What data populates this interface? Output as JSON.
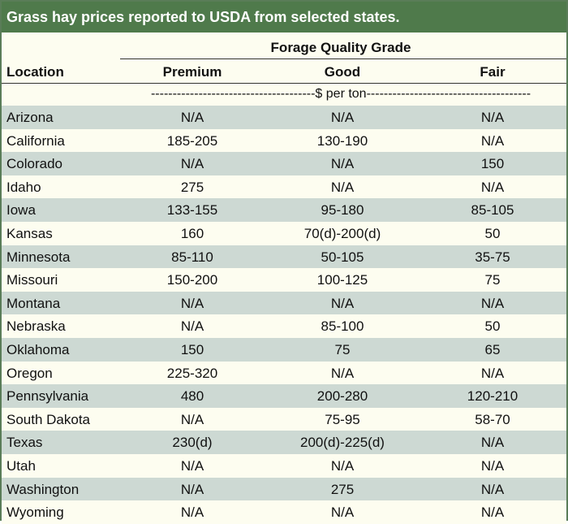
{
  "title": "Grass hay prices reported to USDA from selected states.",
  "group_heading": "Forage Quality Grade",
  "columns": {
    "location": "Location",
    "premium": "Premium",
    "good": "Good",
    "fair": "Fair"
  },
  "units": "--------------------------------------$ per ton--------------------------------------",
  "rows": [
    {
      "location": "Arizona",
      "premium": "N/A",
      "good": "N/A",
      "fair": "N/A"
    },
    {
      "location": "California",
      "premium": "185-205",
      "good": "130-190",
      "fair": "N/A"
    },
    {
      "location": "Colorado",
      "premium": "N/A",
      "good": "N/A",
      "fair": "150"
    },
    {
      "location": "Idaho",
      "premium": "275",
      "good": "N/A",
      "fair": "N/A"
    },
    {
      "location": "Iowa",
      "premium": "133-155",
      "good": "95-180",
      "fair": "85-105"
    },
    {
      "location": "Kansas",
      "premium": "160",
      "good": "70(d)-200(d)",
      "fair": "50"
    },
    {
      "location": "Minnesota",
      "premium": "85-110",
      "good": "50-105",
      "fair": "35-75"
    },
    {
      "location": "Missouri",
      "premium": "150-200",
      "good": "100-125",
      "fair": "75"
    },
    {
      "location": "Montana",
      "premium": "N/A",
      "good": "N/A",
      "fair": "N/A"
    },
    {
      "location": "Nebraska",
      "premium": "N/A",
      "good": "85-100",
      "fair": "50"
    },
    {
      "location": "Oklahoma",
      "premium": "150",
      "good": "75",
      "fair": "65"
    },
    {
      "location": "Oregon",
      "premium": "225-320",
      "good": "N/A",
      "fair": "N/A"
    },
    {
      "location": "Pennsylvania",
      "premium": "480",
      "good": "200-280",
      "fair": "120-210"
    },
    {
      "location": "South Dakota",
      "premium": "N/A",
      "good": "75-95",
      "fair": "58-70"
    },
    {
      "location": "Texas",
      "premium": "230(d)",
      "good": "200(d)-225(d)",
      "fair": "N/A"
    },
    {
      "location": "Utah",
      "premium": "N/A",
      "good": "N/A",
      "fair": "N/A"
    },
    {
      "location": "Washington",
      "premium": "N/A",
      "good": "275",
      "fair": "N/A"
    },
    {
      "location": "Wyoming",
      "premium": "N/A",
      "good": "N/A",
      "fair": "N/A"
    }
  ],
  "colors": {
    "title_bg": "#4f7a4b",
    "shade_row": "#cdd9d3",
    "plain_row": "#fdfdf0"
  }
}
